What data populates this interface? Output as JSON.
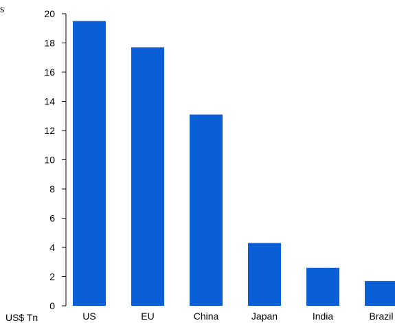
{
  "corner_text": "s",
  "chart_data": {
    "type": "bar",
    "categories": [
      "US",
      "EU",
      "China",
      "Japan",
      "India",
      "Brazil"
    ],
    "values": [
      19.5,
      17.7,
      13.1,
      4.3,
      2.6,
      1.7
    ],
    "title": "",
    "xlabel": "",
    "ylabel": "US$ Tn",
    "ylim": [
      0,
      20
    ],
    "yticks": [
      0,
      2,
      4,
      6,
      8,
      10,
      12,
      14,
      16,
      18,
      20
    ],
    "grid": false,
    "legend": "none",
    "bar_color": "#0a5fd6"
  }
}
